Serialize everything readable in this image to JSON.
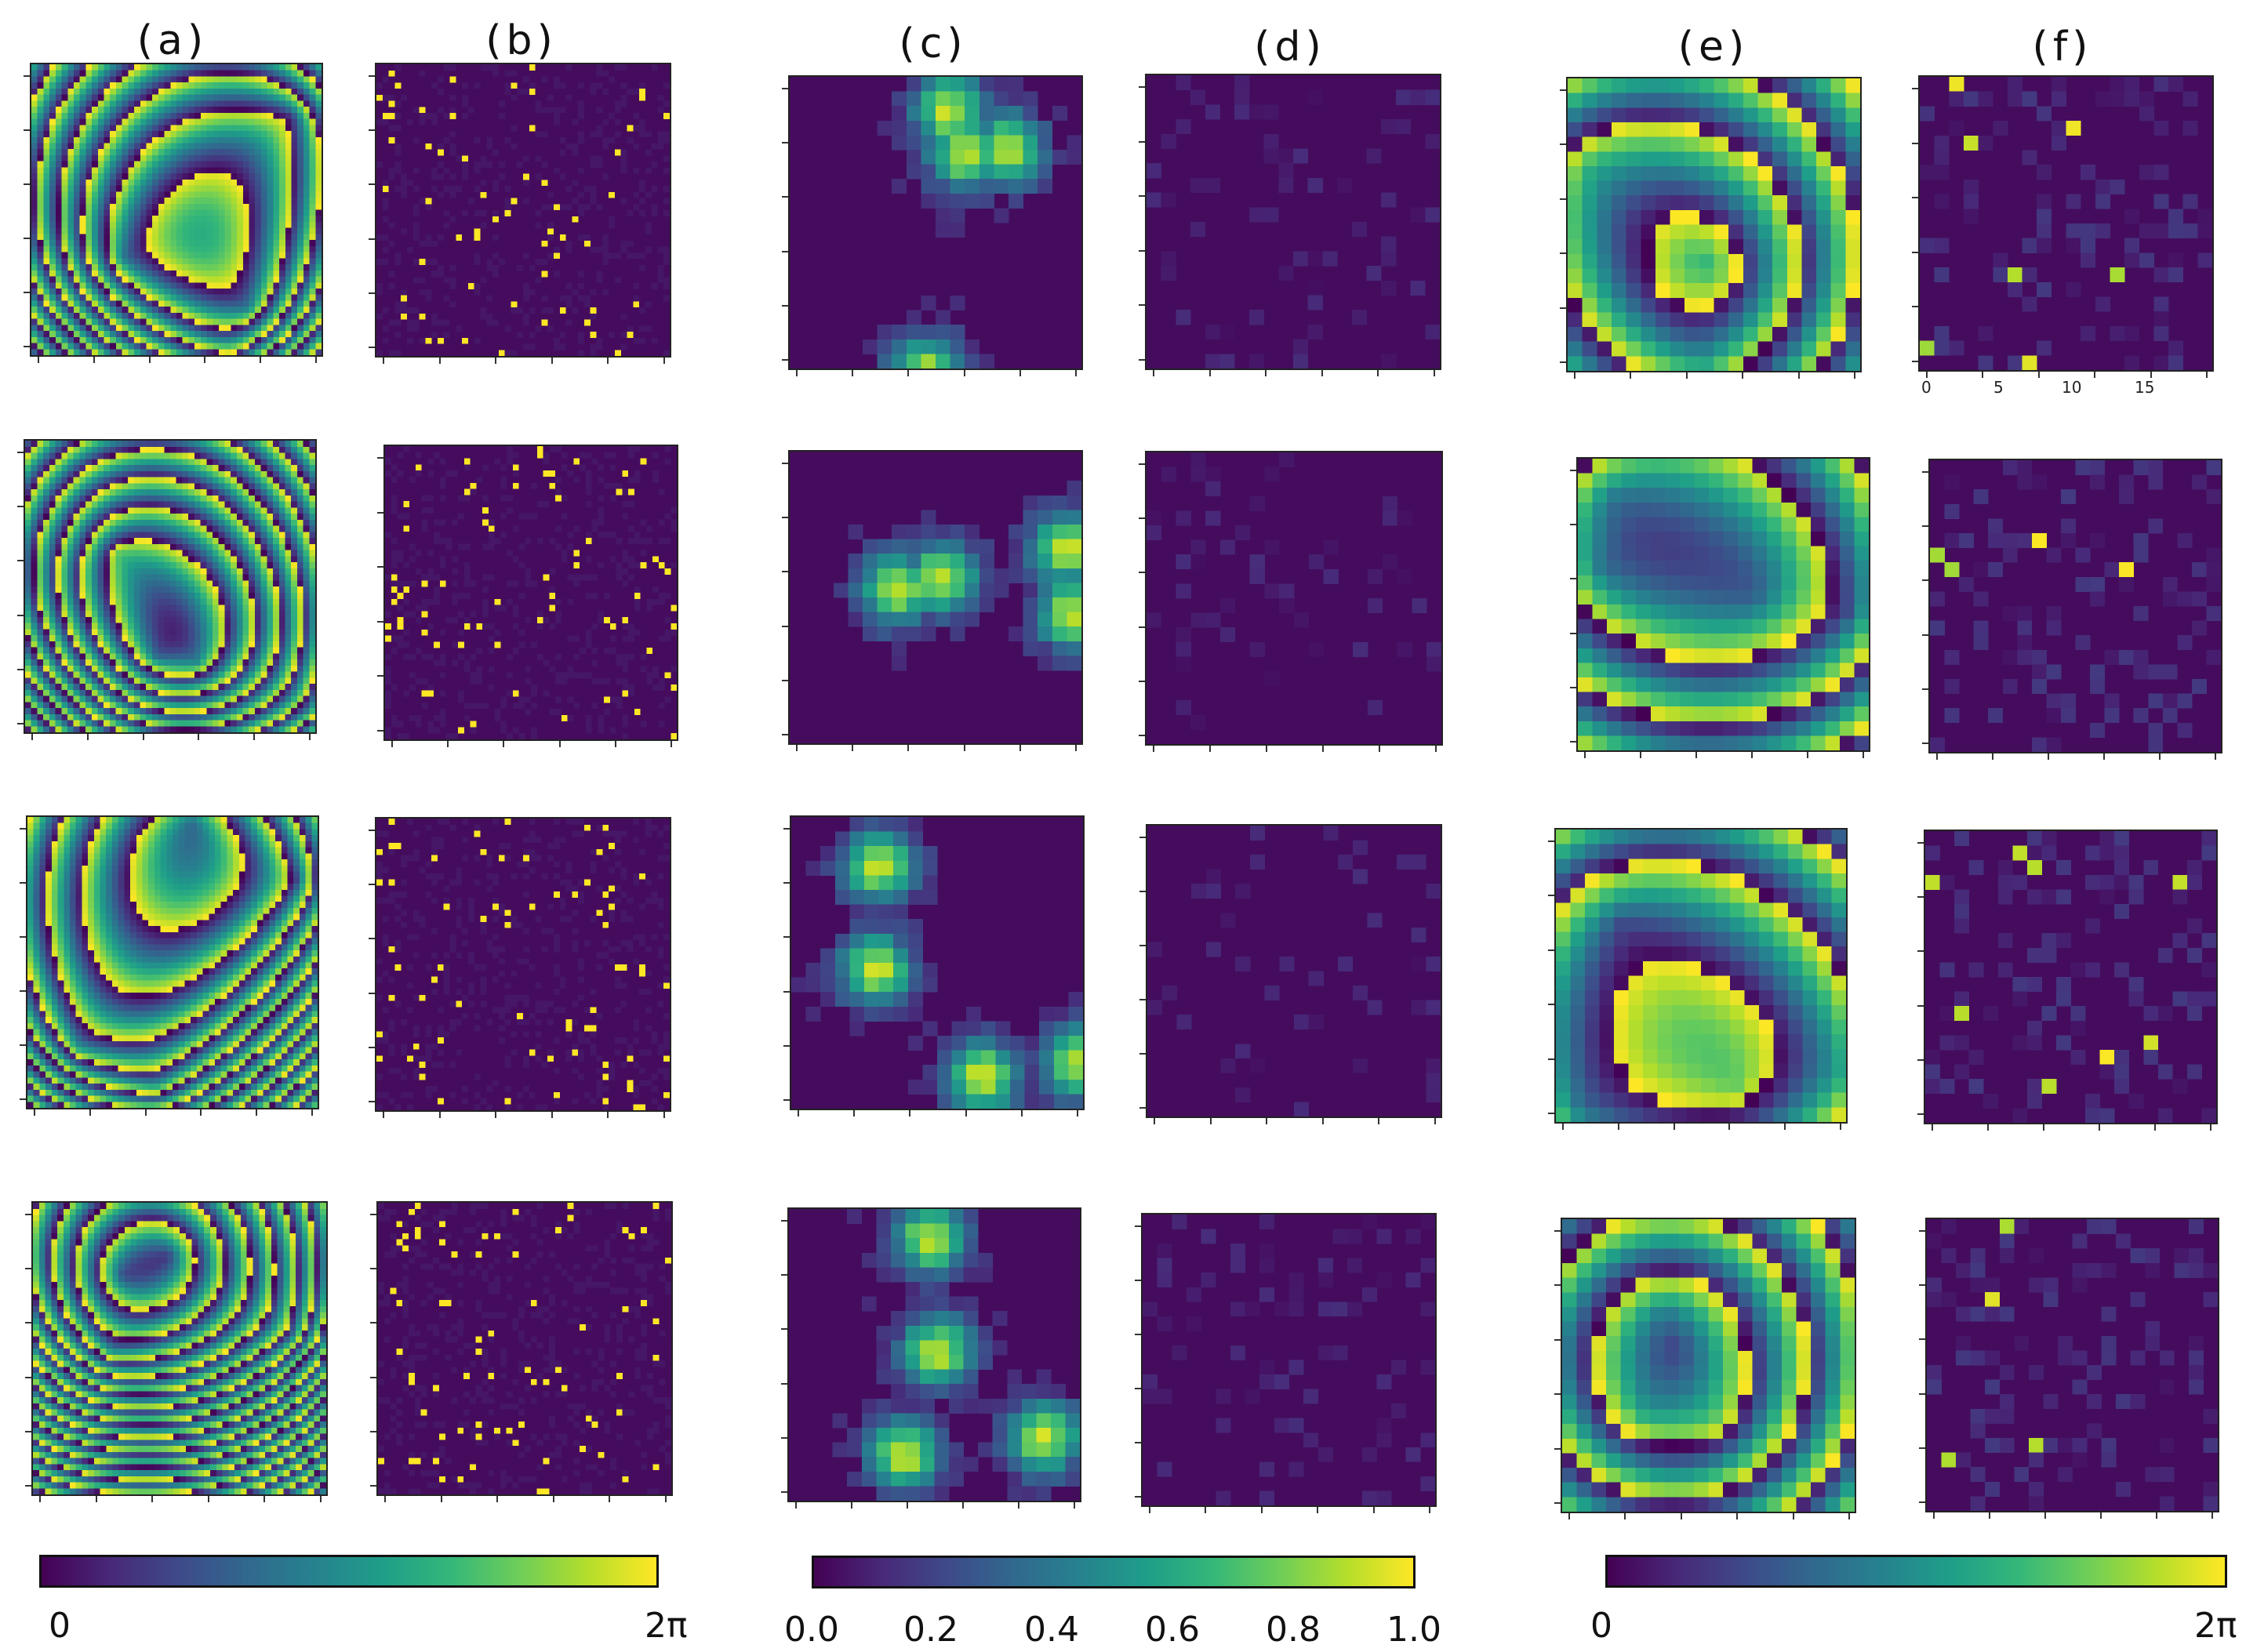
{
  "panel_labels": [
    "(a)",
    "(b)",
    "(c)",
    "(d)",
    "(e)",
    "(f)"
  ],
  "panel_f_axis_ticks": [
    "0",
    "5",
    "10",
    "15"
  ],
  "colorbars": [
    {
      "min_label": "0",
      "max_label": "2π"
    },
    {
      "labels": [
        "0.0",
        "0.2",
        "0.4",
        "0.6",
        "0.8",
        "1.0"
      ]
    },
    {
      "min_label": "0",
      "max_label": "2π"
    }
  ],
  "colormap": "viridis",
  "colors": {
    "dark": "#440154",
    "mid": "#21918c",
    "bright": "#fde725"
  }
}
